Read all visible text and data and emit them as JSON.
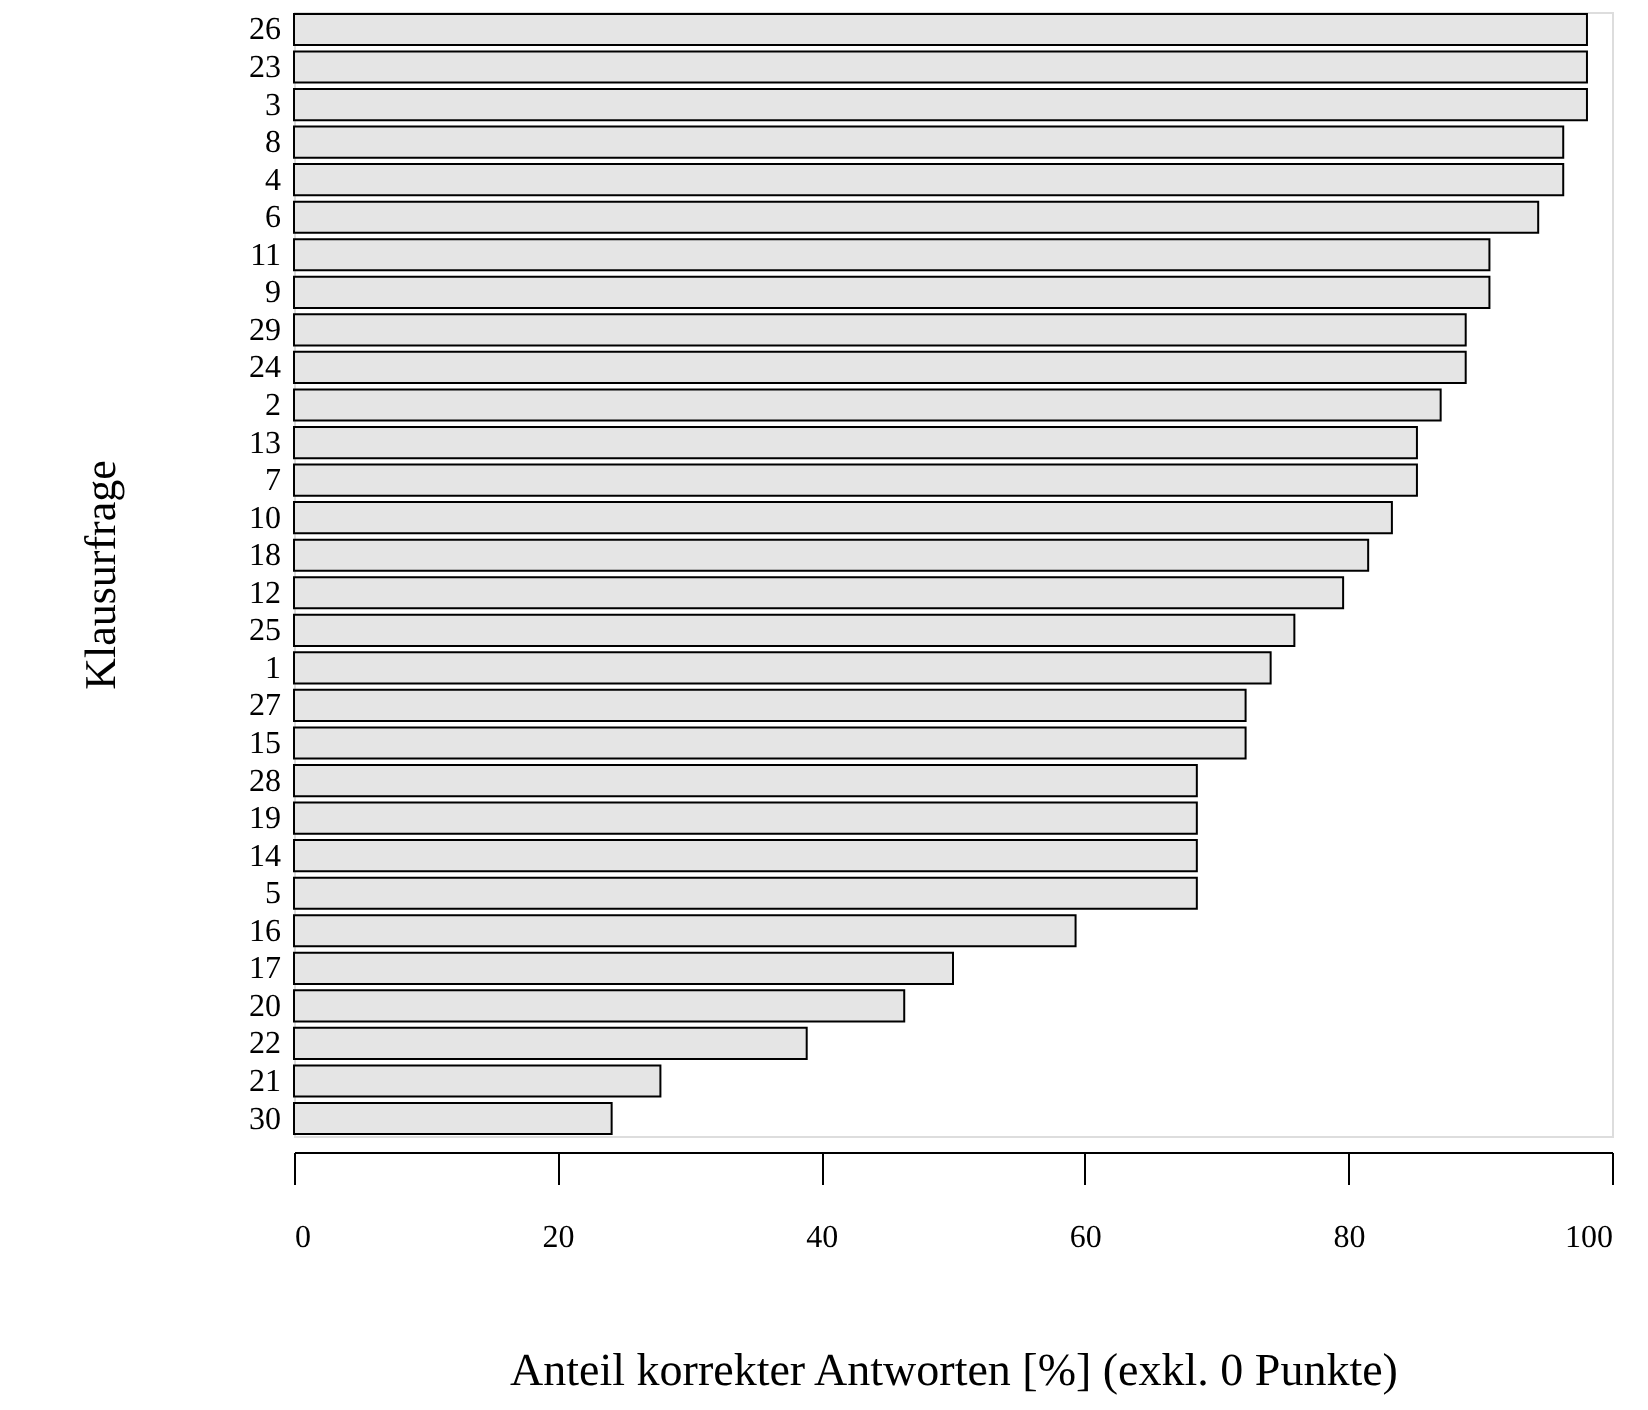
{
  "chart_data": {
    "type": "bar",
    "orientation": "horizontal",
    "xlabel": "Anteil korrekter Antworten [%] (exkl. 0 Punkte)",
    "ylabel": "Klausurfrage",
    "categories": [
      "26",
      "23",
      "3",
      "8",
      "4",
      "6",
      "11",
      "9",
      "29",
      "24",
      "2",
      "13",
      "7",
      "10",
      "18",
      "12",
      "25",
      "1",
      "27",
      "15",
      "28",
      "19",
      "14",
      "5",
      "16",
      "17",
      "20",
      "22",
      "21",
      "30"
    ],
    "values": [
      98.1,
      98.1,
      98.1,
      96.3,
      96.3,
      94.4,
      90.7,
      90.7,
      88.9,
      88.9,
      87.0,
      85.2,
      85.2,
      83.3,
      81.5,
      79.6,
      75.9,
      74.1,
      72.2,
      72.2,
      68.5,
      68.5,
      68.5,
      68.5,
      59.3,
      50.0,
      46.3,
      38.9,
      27.8,
      24.1
    ],
    "color": "#e5e5e5",
    "xlim": [
      0,
      100
    ],
    "xticks": [
      0,
      20,
      40,
      60,
      80,
      100
    ],
    "grid": false
  }
}
